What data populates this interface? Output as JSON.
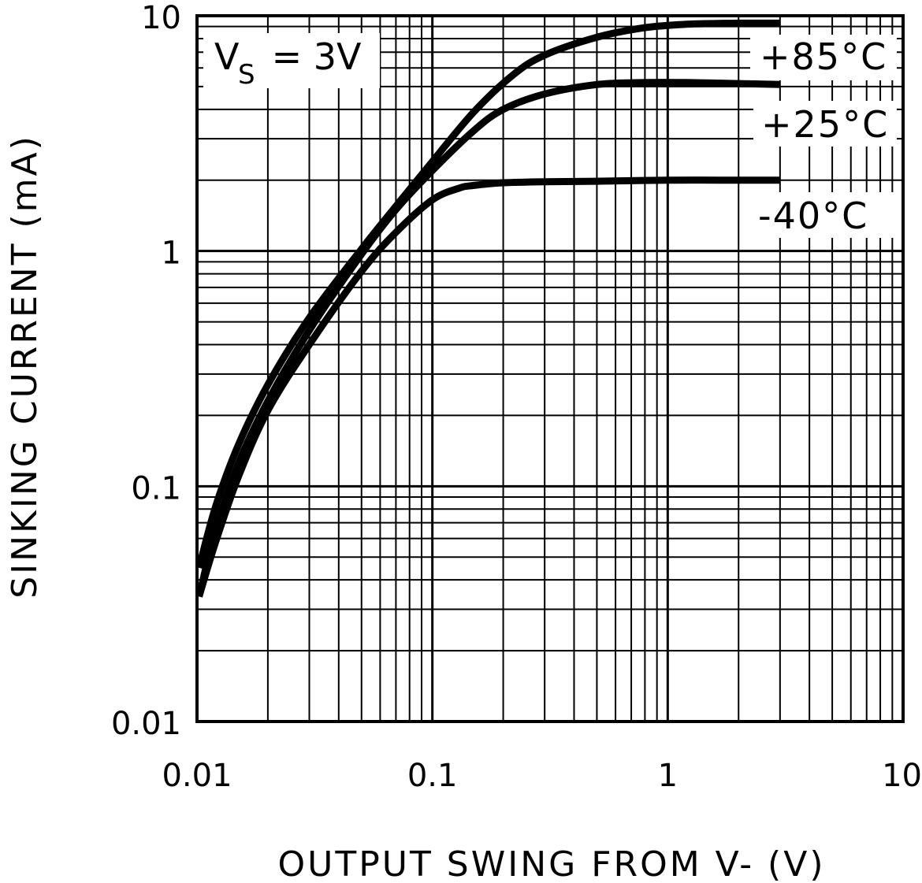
{
  "chart_data": {
    "type": "line",
    "xscale": "log",
    "yscale": "log",
    "xlim": [
      0.01,
      10
    ],
    "ylim": [
      0.01,
      10
    ],
    "grid": true,
    "xlabel": "OUTPUT SWING FROM V- (V)",
    "ylabel": "SINKING CURRENT (mA)",
    "xticks": [
      {
        "value": 0.01,
        "label": "0.01"
      },
      {
        "value": 0.1,
        "label": "0.1"
      },
      {
        "value": 1,
        "label": "1"
      },
      {
        "value": 10,
        "label": "10"
      }
    ],
    "yticks": [
      {
        "value": 0.01,
        "label": "0.01"
      },
      {
        "value": 0.1,
        "label": "0.1"
      },
      {
        "value": 1,
        "label": "1"
      },
      {
        "value": 10,
        "label": "10"
      }
    ],
    "annotation": {
      "main": "V",
      "sub": "S",
      "rest": " = 3V"
    },
    "series": [
      {
        "name": "+85°C",
        "x": [
          0.0102,
          0.012,
          0.015,
          0.02,
          0.03,
          0.05,
          0.07,
          0.1,
          0.15,
          0.22,
          0.3,
          0.5,
          0.8,
          1.2,
          2,
          3
        ],
        "y": [
          0.045,
          0.082,
          0.15,
          0.27,
          0.52,
          1.02,
          1.55,
          2.4,
          3.9,
          5.6,
          6.8,
          8.1,
          8.9,
          9.2,
          9.3,
          9.3
        ]
      },
      {
        "name": "+25°C",
        "x": [
          0.0102,
          0.012,
          0.015,
          0.02,
          0.03,
          0.05,
          0.07,
          0.1,
          0.15,
          0.2,
          0.3,
          0.5,
          0.8,
          1.2,
          2,
          3
        ],
        "y": [
          0.034,
          0.065,
          0.125,
          0.23,
          0.46,
          0.97,
          1.5,
          2.2,
          3.25,
          4.0,
          4.65,
          5.1,
          5.2,
          5.2,
          5.15,
          5.1
        ]
      },
      {
        "name": "-40°C",
        "x": [
          0.0102,
          0.012,
          0.015,
          0.02,
          0.03,
          0.05,
          0.07,
          0.1,
          0.13,
          0.15,
          0.2,
          0.3,
          0.5,
          1,
          2,
          3
        ],
        "y": [
          0.034,
          0.058,
          0.11,
          0.21,
          0.4,
          0.82,
          1.2,
          1.65,
          1.85,
          1.9,
          1.95,
          1.97,
          1.98,
          2.0,
          2.0,
          2.0
        ]
      }
    ],
    "series_labels": [
      "+85°C",
      "+25°C",
      "-40°C"
    ]
  }
}
